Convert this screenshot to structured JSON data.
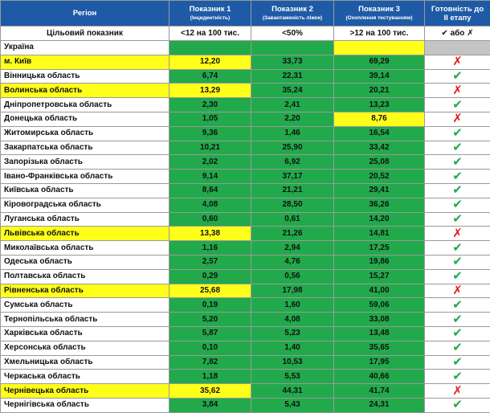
{
  "table": {
    "header": [
      {
        "title": "Регіон"
      },
      {
        "title": "Показник 1",
        "sub": "(Інцидентність)"
      },
      {
        "title": "Показник 2",
        "sub": "(Завантаженість ліжок)"
      },
      {
        "title": "Показник 3",
        "sub": "(Охоплення тестуванням)"
      },
      {
        "title": "Готовність до ІІ етапу"
      }
    ],
    "target": [
      "Цільовий показник",
      "<12 на 100 тис.",
      "<50%",
      ">12 на 100 тис.",
      "✔ або ✗"
    ],
    "ready_symbol": "✔",
    "rows": [
      {
        "cells": [
          "Україна",
          "",
          "",
          "",
          ""
        ],
        "colors": [
          "white",
          "green",
          "green",
          "yellow",
          "gray"
        ]
      },
      {
        "cells": [
          "м. Київ",
          "12,20",
          "33,73",
          "69,29",
          "✗"
        ],
        "colors": [
          "yellow",
          "yellow",
          "green",
          "green",
          "white"
        ]
      },
      {
        "cells": [
          "Вінницька область",
          "6,74",
          "22,31",
          "39,14",
          "✔"
        ],
        "colors": [
          "white",
          "green",
          "green",
          "green",
          "white"
        ]
      },
      {
        "cells": [
          "Волинська область",
          "13,29",
          "35,24",
          "20,21",
          "✗"
        ],
        "colors": [
          "yellow",
          "yellow",
          "green",
          "green",
          "white"
        ]
      },
      {
        "cells": [
          "Дніпропетровська область",
          "2,30",
          "2,41",
          "13,23",
          "✔"
        ],
        "colors": [
          "white",
          "green",
          "green",
          "green",
          "white"
        ]
      },
      {
        "cells": [
          "Донецька область",
          "1,05",
          "2,20",
          "8,76",
          "✗"
        ],
        "colors": [
          "white",
          "green",
          "green",
          "yellow",
          "white"
        ]
      },
      {
        "cells": [
          "Житомирська область",
          "9,36",
          "1,46",
          "16,54",
          "✔"
        ],
        "colors": [
          "white",
          "green",
          "green",
          "green",
          "white"
        ]
      },
      {
        "cells": [
          "Закарпатська область",
          "10,21",
          "25,90",
          "33,42",
          "✔"
        ],
        "colors": [
          "white",
          "green",
          "green",
          "green",
          "white"
        ]
      },
      {
        "cells": [
          "Запорізька область",
          "2,02",
          "6,92",
          "25,08",
          "✔"
        ],
        "colors": [
          "white",
          "green",
          "green",
          "green",
          "white"
        ]
      },
      {
        "cells": [
          "Івано-Франківська область",
          "9,14",
          "37,17",
          "20,52",
          "✔"
        ],
        "colors": [
          "white",
          "green",
          "green",
          "green",
          "white"
        ]
      },
      {
        "cells": [
          "Київська область",
          "8,64",
          "21,21",
          "29,41",
          "✔"
        ],
        "colors": [
          "white",
          "green",
          "green",
          "green",
          "white"
        ]
      },
      {
        "cells": [
          "Кіровоградська область",
          "4,08",
          "28,50",
          "36,26",
          "✔"
        ],
        "colors": [
          "white",
          "green",
          "green",
          "green",
          "white"
        ]
      },
      {
        "cells": [
          "Луганська область",
          "0,60",
          "0,61",
          "14,20",
          "✔"
        ],
        "colors": [
          "white",
          "green",
          "green",
          "green",
          "white"
        ]
      },
      {
        "cells": [
          "Львівська область",
          "13,38",
          "21,26",
          "14,81",
          "✗"
        ],
        "colors": [
          "yellow",
          "yellow",
          "green",
          "green",
          "white"
        ]
      },
      {
        "cells": [
          "Миколаївська область",
          "1,16",
          "2,94",
          "17,25",
          "✔"
        ],
        "colors": [
          "white",
          "green",
          "green",
          "green",
          "white"
        ]
      },
      {
        "cells": [
          "Одеська область",
          "2,57",
          "4,76",
          "19,86",
          "✔"
        ],
        "colors": [
          "white",
          "green",
          "green",
          "green",
          "white"
        ]
      },
      {
        "cells": [
          "Полтавська область",
          "0,29",
          "0,56",
          "15,27",
          "✔"
        ],
        "colors": [
          "white",
          "green",
          "green",
          "green",
          "white"
        ]
      },
      {
        "cells": [
          "Рівненська область",
          "25,68",
          "17,98",
          "41,00",
          "✗"
        ],
        "colors": [
          "yellow",
          "yellow",
          "green",
          "green",
          "white"
        ]
      },
      {
        "cells": [
          "Сумська область",
          "0,19",
          "1,60",
          "59,06",
          "✔"
        ],
        "colors": [
          "white",
          "green",
          "green",
          "green",
          "white"
        ]
      },
      {
        "cells": [
          "Тернопільська область",
          "5,20",
          "4,08",
          "33,08",
          "✔"
        ],
        "colors": [
          "white",
          "green",
          "green",
          "green",
          "white"
        ]
      },
      {
        "cells": [
          "Харківська область",
          "5,87",
          "5,23",
          "13,48",
          "✔"
        ],
        "colors": [
          "white",
          "green",
          "green",
          "green",
          "white"
        ]
      },
      {
        "cells": [
          "Херсонська область",
          "0,10",
          "1,40",
          "35,65",
          "✔"
        ],
        "colors": [
          "white",
          "green",
          "green",
          "green",
          "white"
        ]
      },
      {
        "cells": [
          "Хмельницька область",
          "7,82",
          "10,53",
          "17,95",
          "✔"
        ],
        "colors": [
          "white",
          "green",
          "green",
          "green",
          "white"
        ]
      },
      {
        "cells": [
          "Черкаська область",
          "1,18",
          "5,53",
          "40,66",
          "✔"
        ],
        "colors": [
          "white",
          "green",
          "green",
          "green",
          "white"
        ]
      },
      {
        "cells": [
          "Чернівецька область",
          "35,62",
          "44,31",
          "41,74",
          "✗"
        ],
        "colors": [
          "yellow",
          "yellow",
          "green",
          "green",
          "white"
        ]
      },
      {
        "cells": [
          "Чернігівська область",
          "3,84",
          "5,43",
          "24,31",
          "✔"
        ],
        "colors": [
          "white",
          "green",
          "green",
          "green",
          "white"
        ]
      }
    ]
  }
}
